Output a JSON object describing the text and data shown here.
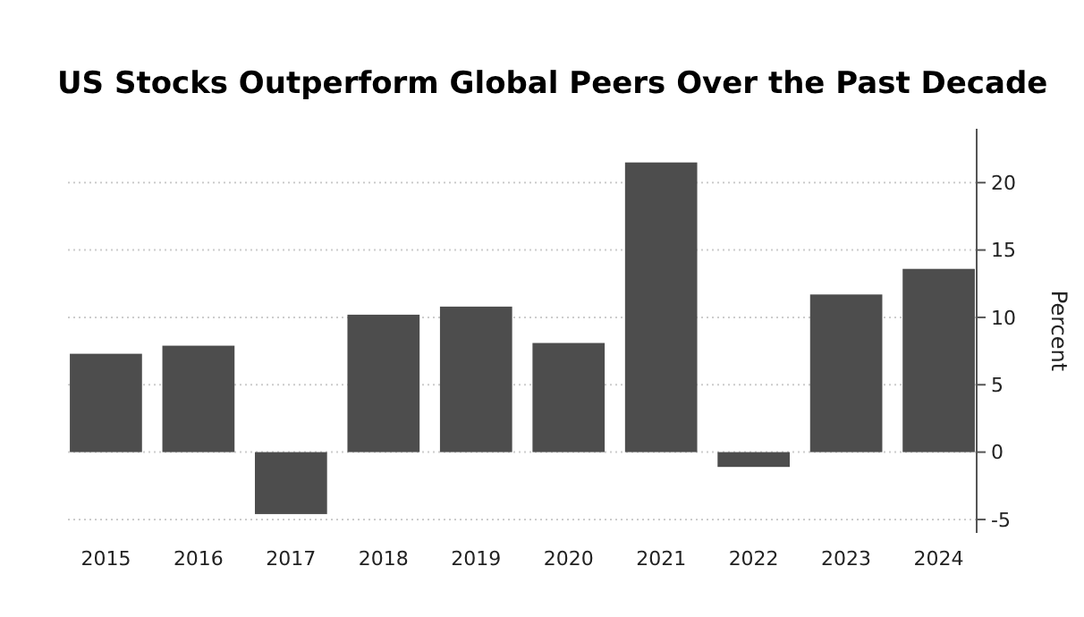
{
  "chart_data": {
    "type": "bar",
    "title": "US Stocks Outperform Global Peers Over the Past Decade",
    "ylabel": "Percent",
    "categories": [
      "2015",
      "2016",
      "2017",
      "2018",
      "2019",
      "2020",
      "2021",
      "2022",
      "2023",
      "2024"
    ],
    "values": [
      7.3,
      7.9,
      -4.6,
      10.2,
      10.8,
      8.1,
      21.5,
      -1.1,
      11.7,
      13.6
    ],
    "color": "#4d4d4d",
    "ylim": [
      -6,
      24
    ],
    "yticks": [
      -5,
      0,
      5,
      10,
      15,
      20
    ],
    "grid": "y"
  }
}
